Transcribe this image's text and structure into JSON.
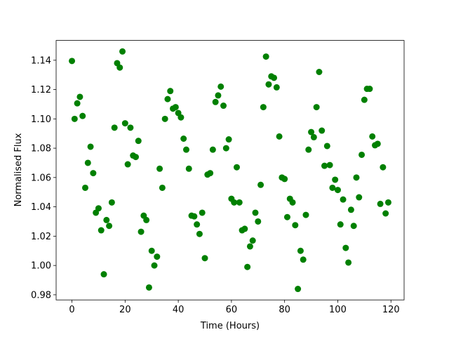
{
  "chart_data": {
    "type": "scatter",
    "xlabel": "Time (Hours)",
    "ylabel": "Normalised Flux",
    "color": "#008000",
    "x": [
      0,
      1,
      2,
      3,
      4,
      5,
      6,
      7,
      8,
      9,
      10,
      11,
      12,
      13,
      14,
      15,
      16,
      17,
      18,
      19,
      20,
      21,
      22,
      23,
      24,
      25,
      26,
      27,
      28,
      29,
      30,
      31,
      32,
      33,
      34,
      35,
      36,
      37,
      38,
      39,
      40,
      41,
      42,
      43,
      44,
      45,
      46,
      47,
      48,
      49,
      50,
      51,
      52,
      53,
      54,
      55,
      56,
      57,
      58,
      59,
      60,
      61,
      62,
      63,
      64,
      65,
      66,
      67,
      68,
      69,
      70,
      71,
      72,
      73,
      74,
      75,
      76,
      77,
      78,
      79,
      80,
      81,
      82,
      83,
      84,
      85,
      86,
      87,
      88,
      89,
      90,
      91,
      92,
      93,
      94,
      95,
      96,
      97,
      98,
      99,
      100,
      101,
      102,
      103,
      104,
      105,
      106,
      107,
      108,
      109,
      110,
      111,
      112,
      113,
      114,
      115,
      116,
      117,
      118,
      119
    ],
    "values": [
      1.1395,
      1.1,
      1.1106,
      1.115,
      1.102,
      1.053,
      1.07,
      1.081,
      1.063,
      1.036,
      1.039,
      1.024,
      0.994,
      1.031,
      1.027,
      1.043,
      1.094,
      1.138,
      1.135,
      1.146,
      1.097,
      1.069,
      1.094,
      1.075,
      1.074,
      1.085,
      1.023,
      1.034,
      1.031,
      0.985,
      1.01,
      1.0,
      1.006,
      1.066,
      1.053,
      1.1,
      1.1135,
      1.119,
      1.107,
      1.108,
      1.104,
      1.101,
      1.0865,
      1.079,
      1.066,
      1.034,
      1.0335,
      1.028,
      1.0215,
      1.036,
      1.005,
      1.062,
      1.063,
      1.079,
      1.1115,
      1.116,
      1.122,
      1.109,
      1.08,
      1.086,
      1.0455,
      1.043,
      1.067,
      1.043,
      1.024,
      1.025,
      0.999,
      1.013,
      1.017,
      1.036,
      1.03,
      1.055,
      1.108,
      1.1425,
      1.1235,
      1.129,
      1.128,
      1.1215,
      1.088,
      1.06,
      1.059,
      1.033,
      1.0455,
      1.043,
      1.0275,
      0.984,
      1.01,
      1.004,
      1.0345,
      1.079,
      1.091,
      1.0875,
      1.108,
      1.132,
      1.092,
      1.068,
      1.0815,
      1.0685,
      1.053,
      1.0585,
      1.0515,
      1.028,
      1.045,
      1.012,
      1.002,
      1.038,
      1.027,
      1.06,
      1.0465,
      1.0755,
      1.113,
      1.1205,
      1.1205,
      1.088,
      1.082,
      1.083,
      1.042,
      1.067,
      1.0355,
      1.043
    ],
    "xlim": [
      -5.95,
      124.95
    ],
    "ylim": [
      0.9765,
      1.1535
    ],
    "xticks": [
      0,
      20,
      40,
      60,
      80,
      100,
      120
    ],
    "yticks": [
      0.98,
      {
        "value": 1.0,
        "label": "1.00"
      },
      1.02,
      1.04,
      1.06,
      1.08,
      {
        "value": 1.1,
        "label": "1.10"
      },
      1.12,
      1.14
    ]
  }
}
